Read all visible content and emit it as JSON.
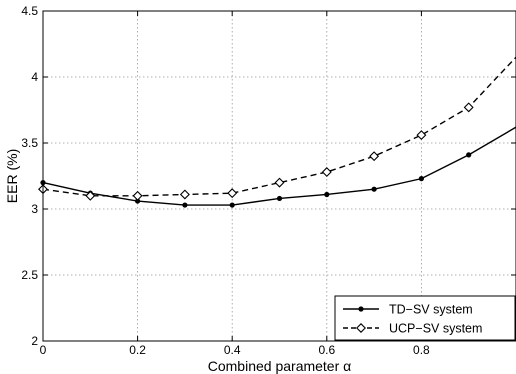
{
  "chart_data": {
    "type": "line",
    "title": "",
    "xlabel": "Combined parameter α",
    "ylabel": "EER (%)",
    "xlim": [
      0,
      1
    ],
    "ylim": [
      2,
      4.5
    ],
    "x_ticks": [
      0,
      0.2,
      0.4,
      0.6,
      0.8
    ],
    "x_tick_labels": [
      "0",
      "0.2",
      "0.4",
      "0.6",
      "0.8"
    ],
    "y_ticks": [
      2,
      2.5,
      3,
      3.5,
      4,
      4.5
    ],
    "y_tick_labels": [
      "2",
      "2.5",
      "3",
      "3.5",
      "4",
      "4.5"
    ],
    "grid": true,
    "legend_position": "bottom-right",
    "x": [
      0,
      0.1,
      0.2,
      0.3,
      0.4,
      0.5,
      0.6,
      0.7,
      0.8,
      0.9,
      1.0
    ],
    "series": [
      {
        "name": "TD−SV system",
        "values": [
          3.2,
          3.12,
          3.06,
          3.03,
          3.03,
          3.08,
          3.11,
          3.15,
          3.23,
          3.41,
          3.62
        ],
        "line_style": "solid",
        "marker": "dot",
        "color": "#000000"
      },
      {
        "name": "UCP−SV system",
        "values": [
          3.15,
          3.1,
          3.1,
          3.11,
          3.12,
          3.2,
          3.28,
          3.4,
          3.56,
          3.77,
          4.15
        ],
        "line_style": "dashed",
        "marker": "diamond",
        "color": "#000000"
      }
    ]
  }
}
